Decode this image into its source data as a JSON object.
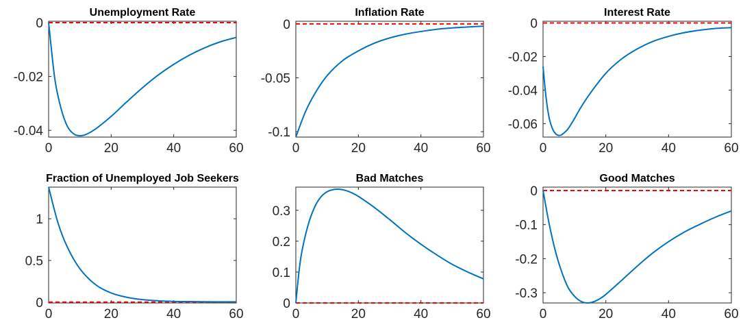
{
  "chart_data": [
    {
      "type": "line",
      "title": "Unemployment Rate",
      "xlim": [
        0,
        60
      ],
      "ylim": [
        -0.0425,
        0.0005
      ],
      "xticks": [
        "0",
        "20",
        "40",
        "60"
      ],
      "yticks": [
        {
          "value": 0,
          "label": "0"
        },
        {
          "value": -0.02,
          "label": "-0.02"
        },
        {
          "value": -0.04,
          "label": "-0.04"
        }
      ],
      "zero_line": true,
      "x": [
        0,
        2,
        4,
        6,
        8,
        10,
        12,
        15,
        20,
        25,
        30,
        35,
        40,
        45,
        50,
        55,
        60
      ],
      "series": [
        {
          "values": [
            0,
            -0.021,
            -0.032,
            -0.0385,
            -0.0413,
            -0.042,
            -0.0415,
            -0.0395,
            -0.0348,
            -0.0294,
            -0.0242,
            -0.0195,
            -0.0155,
            -0.0121,
            -0.0093,
            -0.0071,
            -0.0055
          ],
          "color": "#0072BD"
        }
      ]
    },
    {
      "type": "line",
      "title": "Inflation Rate",
      "xlim": [
        0,
        60
      ],
      "ylim": [
        -0.105,
        0.0025
      ],
      "xticks": [
        "0",
        "20",
        "40",
        "60"
      ],
      "yticks": [
        {
          "value": 0,
          "label": "0"
        },
        {
          "value": -0.05,
          "label": "-0.05"
        },
        {
          "value": -0.1,
          "label": "-0.1"
        }
      ],
      "zero_line": true,
      "x": [
        0,
        3,
        6,
        10,
        15,
        20,
        25,
        30,
        35,
        40,
        45,
        50,
        55,
        60
      ],
      "series": [
        {
          "values": [
            -0.105,
            -0.082,
            -0.065,
            -0.048,
            -0.034,
            -0.025,
            -0.018,
            -0.013,
            -0.0095,
            -0.007,
            -0.005,
            -0.0037,
            -0.0028,
            -0.002
          ],
          "color": "#0072BD"
        }
      ]
    },
    {
      "type": "line",
      "title": "Interest Rate",
      "xlim": [
        0,
        60
      ],
      "ylim": [
        -0.068,
        0.001
      ],
      "xticks": [
        "0",
        "20",
        "40",
        "60"
      ],
      "yticks": [
        {
          "value": 0,
          "label": "0"
        },
        {
          "value": -0.02,
          "label": "-0.02"
        },
        {
          "value": -0.04,
          "label": "-0.04"
        },
        {
          "value": -0.06,
          "label": "-0.06"
        }
      ],
      "zero_line": true,
      "x": [
        0,
        1,
        2,
        3,
        4,
        5,
        6,
        8,
        10,
        12,
        15,
        20,
        25,
        30,
        35,
        40,
        45,
        50,
        55,
        60
      ],
      "series": [
        {
          "values": [
            -0.026,
            -0.045,
            -0.057,
            -0.063,
            -0.066,
            -0.067,
            -0.0665,
            -0.063,
            -0.057,
            -0.0505,
            -0.042,
            -0.03,
            -0.0215,
            -0.0155,
            -0.011,
            -0.008,
            -0.0058,
            -0.0043,
            -0.0033,
            -0.0028
          ],
          "color": "#0072BD"
        }
      ]
    },
    {
      "type": "line",
      "title": "Fraction of Unemployed Job Seekers",
      "xlim": [
        0,
        60
      ],
      "ylim": [
        -0.01,
        1.38
      ],
      "xticks": [
        "0",
        "20",
        "40",
        "60"
      ],
      "yticks": [
        {
          "value": 0,
          "label": "0"
        },
        {
          "value": 0.5,
          "label": "0.5"
        },
        {
          "value": 1,
          "label": "1"
        }
      ],
      "zero_line": true,
      "x": [
        0,
        3,
        6,
        10,
        15,
        20,
        25,
        30,
        35,
        40,
        45,
        50,
        55,
        60
      ],
      "series": [
        {
          "values": [
            1.38,
            0.95,
            0.66,
            0.4,
            0.21,
            0.11,
            0.058,
            0.03,
            0.016,
            0.009,
            0.006,
            0.004,
            0.003,
            0.003
          ],
          "color": "#0072BD"
        }
      ]
    },
    {
      "type": "line",
      "title": "Bad Matches",
      "xlim": [
        0,
        60
      ],
      "ylim": [
        0,
        0.375
      ],
      "xticks": [
        "0",
        "20",
        "40",
        "60"
      ],
      "yticks": [
        {
          "value": 0,
          "label": "0"
        },
        {
          "value": 0.1,
          "label": "0.1"
        },
        {
          "value": 0.2,
          "label": "0.2"
        },
        {
          "value": 0.3,
          "label": "0.3"
        }
      ],
      "zero_line": true,
      "x": [
        0,
        1,
        2,
        4,
        6,
        8,
        10,
        12,
        14,
        16,
        18,
        20,
        25,
        30,
        35,
        40,
        45,
        50,
        55,
        60
      ],
      "series": [
        {
          "values": [
            0,
            0.1,
            0.17,
            0.255,
            0.31,
            0.343,
            0.36,
            0.367,
            0.368,
            0.364,
            0.356,
            0.345,
            0.31,
            0.27,
            0.228,
            0.19,
            0.156,
            0.125,
            0.1,
            0.078
          ],
          "color": "#0072BD"
        }
      ]
    },
    {
      "type": "line",
      "title": "Good Matches",
      "xlim": [
        0,
        60
      ],
      "ylim": [
        -0.33,
        0.01
      ],
      "xticks": [
        "0",
        "20",
        "40",
        "60"
      ],
      "yticks": [
        {
          "value": 0,
          "label": "0"
        },
        {
          "value": -0.1,
          "label": "-0.1"
        },
        {
          "value": -0.2,
          "label": "-0.2"
        },
        {
          "value": -0.3,
          "label": "-0.3"
        }
      ],
      "zero_line": true,
      "x": [
        0,
        2,
        4,
        6,
        8,
        10,
        12,
        14,
        16,
        18,
        20,
        25,
        30,
        35,
        40,
        45,
        50,
        55,
        60
      ],
      "series": [
        {
          "values": [
            0,
            -0.1,
            -0.18,
            -0.24,
            -0.285,
            -0.31,
            -0.325,
            -0.33,
            -0.327,
            -0.318,
            -0.305,
            -0.264,
            -0.222,
            -0.183,
            -0.15,
            -0.122,
            -0.099,
            -0.078,
            -0.06
          ],
          "color": "#0072BD"
        }
      ]
    }
  ],
  "colors": {
    "line": "#0072BD",
    "zero_line": "#FF0000",
    "axis": "#262626"
  }
}
